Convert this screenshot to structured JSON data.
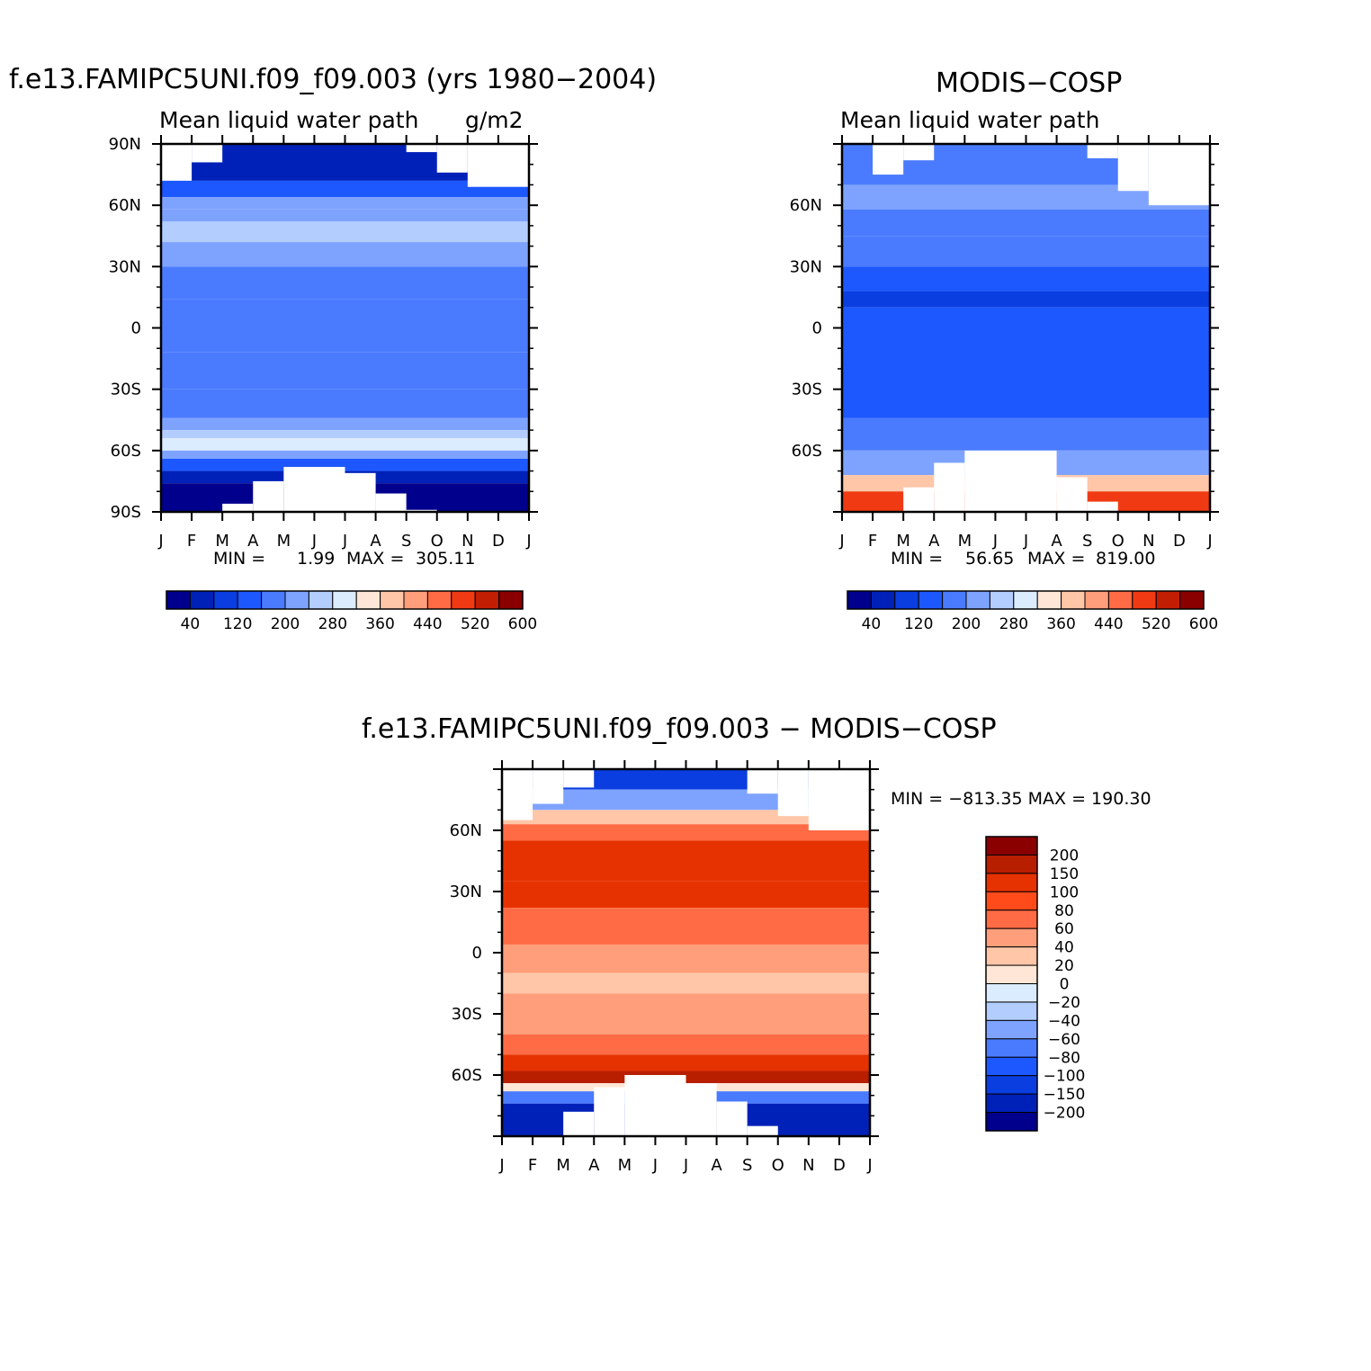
{
  "panels": {
    "model": {
      "title": "f.e13.FAMIPC5UNI.f09_f09.003 (yrs 1980−2004)",
      "subtitle": "Mean liquid water path",
      "units": "g/m2",
      "min_label": "MIN =",
      "min_value": "1.99",
      "max_label": "MAX =",
      "max_value": "305.11"
    },
    "obs": {
      "title": "MODIS−COSP",
      "subtitle": "Mean liquid water path",
      "min_label": "MIN =",
      "min_value": "56.65",
      "max_label": "MAX =",
      "max_value": "819.00"
    },
    "diff": {
      "title": "f.e13.FAMIPC5UNI.f09_f09.003 − MODIS−COSP",
      "minmax_text": "MIN = −813.35 MAX = 190.30"
    }
  },
  "colorbars": {
    "lwp_labels": [
      "40",
      "120",
      "200",
      "280",
      "360",
      "440",
      "520",
      "600"
    ],
    "diff_labels": [
      "200",
      "150",
      "100",
      "80",
      "60",
      "40",
      "20",
      "0",
      "−20",
      "−40",
      "−60",
      "−80",
      "−100",
      "−150",
      "−200"
    ]
  },
  "chart_data": [
    {
      "type": "heatmap",
      "title": "f.e13.FAMIPC5UNI.f09_f09.003 (yrs 1980−2004)",
      "subtitle": "Mean liquid water path",
      "units": "g/m2",
      "x_tick_labels": [
        "J",
        "F",
        "M",
        "A",
        "M",
        "J",
        "J",
        "A",
        "S",
        "O",
        "N",
        "D",
        "J"
      ],
      "y_tick_labels": [
        "90N",
        "60N",
        "30N",
        "0",
        "30S",
        "60S",
        "90S"
      ],
      "ylim": [
        -90,
        90
      ],
      "xlim": [
        0,
        12
      ],
      "levels": [
        40,
        80,
        120,
        160,
        200,
        240,
        280,
        320,
        360,
        400,
        440,
        480,
        520,
        560,
        600
      ],
      "min": 1.99,
      "max": 305.11,
      "bands": [
        {
          "lat_top": 90,
          "lat_bottom": 72,
          "value": 60
        },
        {
          "lat_top": 72,
          "lat_bottom": 64,
          "value": 140
        },
        {
          "lat_top": 64,
          "lat_bottom": 58,
          "value": 200
        },
        {
          "lat_top": 58,
          "lat_bottom": 52,
          "value": 230
        },
        {
          "lat_top": 52,
          "lat_bottom": 42,
          "value": 270
        },
        {
          "lat_top": 42,
          "lat_bottom": 30,
          "value": 230
        },
        {
          "lat_top": 30,
          "lat_bottom": 14,
          "value": 190
        },
        {
          "lat_top": 14,
          "lat_bottom": -12,
          "value": 160
        },
        {
          "lat_top": -12,
          "lat_bottom": -30,
          "value": 190
        },
        {
          "lat_top": -30,
          "lat_bottom": -44,
          "value": 170
        },
        {
          "lat_top": -44,
          "lat_bottom": -50,
          "value": 220
        },
        {
          "lat_top": -50,
          "lat_bottom": -54,
          "value": 240
        },
        {
          "lat_top": -54,
          "lat_bottom": -60,
          "value": 280
        },
        {
          "lat_top": -60,
          "lat_bottom": -64,
          "value": 200
        },
        {
          "lat_top": -64,
          "lat_bottom": -70,
          "value": 130
        },
        {
          "lat_top": -70,
          "lat_bottom": -76,
          "value": 60
        },
        {
          "lat_top": -76,
          "lat_bottom": -90,
          "value": 20
        }
      ],
      "missing": [
        {
          "months": [
            0,
            1
          ],
          "lat_from": 72,
          "lat_to": 90
        },
        {
          "months": [
            1,
            2
          ],
          "lat_from": 81,
          "lat_to": 90
        },
        {
          "months": [
            8,
            9
          ],
          "lat_from": 86,
          "lat_to": 90
        },
        {
          "months": [
            9,
            10
          ],
          "lat_from": 76,
          "lat_to": 90
        },
        {
          "months": [
            10,
            12
          ],
          "lat_from": 69,
          "lat_to": 90
        },
        {
          "months": [
            2,
            3
          ],
          "lat_from": -90,
          "lat_to": -86
        },
        {
          "months": [
            3,
            4
          ],
          "lat_from": -90,
          "lat_to": -75
        },
        {
          "months": [
            4,
            6
          ],
          "lat_from": -90,
          "lat_to": -68
        },
        {
          "months": [
            6,
            7
          ],
          "lat_from": -90,
          "lat_to": -71
        },
        {
          "months": [
            7,
            8
          ],
          "lat_from": -90,
          "lat_to": -81
        },
        {
          "months": [
            8,
            9
          ],
          "lat_from": -90,
          "lat_to": -89
        }
      ]
    },
    {
      "type": "heatmap",
      "title": "MODIS−COSP",
      "subtitle": "Mean liquid water path",
      "x_tick_labels": [
        "J",
        "F",
        "M",
        "A",
        "M",
        "J",
        "J",
        "A",
        "S",
        "O",
        "N",
        "D",
        "J"
      ],
      "y_tick_labels": [
        "60N",
        "30N",
        "0",
        "30S",
        "60S"
      ],
      "ylim": [
        -90,
        90
      ],
      "xlim": [
        0,
        12
      ],
      "levels": [
        40,
        80,
        120,
        160,
        200,
        240,
        280,
        320,
        360,
        400,
        440,
        480,
        520,
        560,
        600
      ],
      "min": 56.65,
      "max": 819.0,
      "bands": [
        {
          "lat_top": 90,
          "lat_bottom": 70,
          "value": 170
        },
        {
          "lat_top": 70,
          "lat_bottom": 58,
          "value": 200
        },
        {
          "lat_top": 58,
          "lat_bottom": 45,
          "value": 160
        },
        {
          "lat_top": 45,
          "lat_bottom": 30,
          "value": 170
        },
        {
          "lat_top": 30,
          "lat_bottom": 18,
          "value": 130
        },
        {
          "lat_top": 18,
          "lat_bottom": 10,
          "value": 100
        },
        {
          "lat_top": 10,
          "lat_bottom": -44,
          "value": 130
        },
        {
          "lat_top": -44,
          "lat_bottom": -60,
          "value": 170
        },
        {
          "lat_top": -60,
          "lat_bottom": -72,
          "value": 210
        },
        {
          "lat_top": -72,
          "lat_bottom": -80,
          "value": 380
        },
        {
          "lat_top": -80,
          "lat_bottom": -90,
          "value": 500
        }
      ],
      "missing": [
        {
          "months": [
            1,
            2
          ],
          "lat_from": 75,
          "lat_to": 90
        },
        {
          "months": [
            2,
            3
          ],
          "lat_from": 82,
          "lat_to": 90
        },
        {
          "months": [
            8,
            9
          ],
          "lat_from": 83,
          "lat_to": 90
        },
        {
          "months": [
            9,
            10
          ],
          "lat_from": 67,
          "lat_to": 90
        },
        {
          "months": [
            10,
            12
          ],
          "lat_from": 60,
          "lat_to": 90
        },
        {
          "months": [
            2,
            3
          ],
          "lat_from": -90,
          "lat_to": -78
        },
        {
          "months": [
            3,
            4
          ],
          "lat_from": -90,
          "lat_to": -66
        },
        {
          "months": [
            4,
            7
          ],
          "lat_from": -90,
          "lat_to": -60
        },
        {
          "months": [
            7,
            8
          ],
          "lat_from": -90,
          "lat_to": -73
        },
        {
          "months": [
            8,
            9
          ],
          "lat_from": -90,
          "lat_to": -85
        }
      ]
    },
    {
      "type": "heatmap",
      "title": "f.e13.FAMIPC5UNI.f09_f09.003 − MODIS−COSP",
      "x_tick_labels": [
        "J",
        "F",
        "M",
        "A",
        "M",
        "J",
        "J",
        "A",
        "S",
        "O",
        "N",
        "D",
        "J"
      ],
      "y_tick_labels": [
        "60N",
        "30N",
        "0",
        "30S",
        "60S"
      ],
      "ylim": [
        -90,
        90
      ],
      "xlim": [
        0,
        12
      ],
      "levels": [
        -200,
        -150,
        -100,
        -80,
        -60,
        -40,
        -20,
        0,
        20,
        40,
        60,
        80,
        100,
        150,
        200
      ],
      "min": -813.35,
      "max": 190.3,
      "bands": [
        {
          "lat_top": 90,
          "lat_bottom": 80,
          "value": -150
        },
        {
          "lat_top": 80,
          "lat_bottom": 70,
          "value": -50
        },
        {
          "lat_top": 70,
          "lat_bottom": 63,
          "value": 20
        },
        {
          "lat_top": 63,
          "lat_bottom": 55,
          "value": 70
        },
        {
          "lat_top": 55,
          "lat_bottom": 35,
          "value": 110
        },
        {
          "lat_top": 35,
          "lat_bottom": 22,
          "value": 110
        },
        {
          "lat_top": 22,
          "lat_bottom": 4,
          "value": 70
        },
        {
          "lat_top": 4,
          "lat_bottom": -10,
          "value": 50
        },
        {
          "lat_top": -10,
          "lat_bottom": -20,
          "value": 30
        },
        {
          "lat_top": -20,
          "lat_bottom": -40,
          "value": 40
        },
        {
          "lat_top": -40,
          "lat_bottom": -50,
          "value": 70
        },
        {
          "lat_top": -50,
          "lat_bottom": -58,
          "value": 110
        },
        {
          "lat_top": -58,
          "lat_bottom": -64,
          "value": 160
        },
        {
          "lat_top": -64,
          "lat_bottom": -68,
          "value": 10
        },
        {
          "lat_top": -68,
          "lat_bottom": -74,
          "value": -80
        },
        {
          "lat_top": -74,
          "lat_bottom": -90,
          "value": -200
        }
      ],
      "missing": [
        {
          "months": [
            0,
            1
          ],
          "lat_from": 65,
          "lat_to": 90
        },
        {
          "months": [
            1,
            2
          ],
          "lat_from": 73,
          "lat_to": 90
        },
        {
          "months": [
            2,
            3
          ],
          "lat_from": 81,
          "lat_to": 90
        },
        {
          "months": [
            8,
            9
          ],
          "lat_from": 78,
          "lat_to": 90
        },
        {
          "months": [
            9,
            10
          ],
          "lat_from": 67,
          "lat_to": 90
        },
        {
          "months": [
            10,
            12
          ],
          "lat_from": 60,
          "lat_to": 90
        },
        {
          "months": [
            2,
            3
          ],
          "lat_from": -90,
          "lat_to": -78
        },
        {
          "months": [
            3,
            4
          ],
          "lat_from": -90,
          "lat_to": -66
        },
        {
          "months": [
            4,
            6
          ],
          "lat_from": -90,
          "lat_to": -60
        },
        {
          "months": [
            6,
            7
          ],
          "lat_from": -90,
          "lat_to": -64
        },
        {
          "months": [
            7,
            8
          ],
          "lat_from": -90,
          "lat_to": -73
        },
        {
          "months": [
            8,
            9
          ],
          "lat_from": -90,
          "lat_to": -85
        }
      ]
    }
  ],
  "colors": {
    "lwp_palette": [
      "#00008c",
      "#0021b7",
      "#0a3ee0",
      "#1d58ff",
      "#4a7bff",
      "#7ea3ff",
      "#b3cdff",
      "#dcecff",
      "#ffe6d6",
      "#ffc6a8",
      "#ff9e7a",
      "#ff6b45",
      "#f03a13",
      "#c21e03",
      "#8a0000"
    ],
    "diff_palette": [
      "#00008c",
      "#0021b7",
      "#0a3ee0",
      "#1d58ff",
      "#4a7bff",
      "#7ea3ff",
      "#b3cdff",
      "#dcecff",
      "#ffe6d6",
      "#ffc6a8",
      "#ff9e7a",
      "#ff6b45",
      "#ff4a1a",
      "#e63200",
      "#b81e00",
      "#8a0000"
    ]
  }
}
